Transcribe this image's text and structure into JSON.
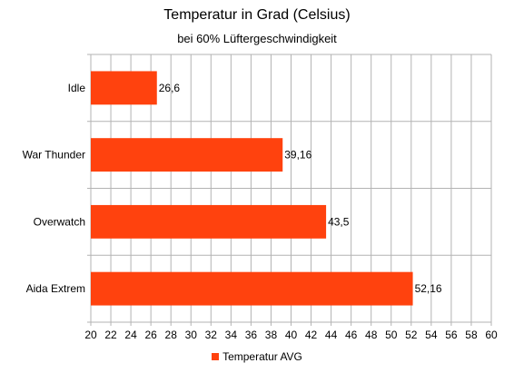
{
  "chart_data": {
    "type": "bar",
    "orientation": "horizontal",
    "title": "Temperatur in Grad (Celsius)",
    "subtitle": "bei 60% Lüftergeschwindigkeit",
    "categories": [
      "Idle",
      "War Thunder",
      "Overwatch",
      "Aida Extrem"
    ],
    "series": [
      {
        "name": "Temperatur AVG",
        "values": [
          26.6,
          39.16,
          43.5,
          52.16
        ],
        "value_labels": [
          "26,6",
          "39,16",
          "43,5",
          "52,16"
        ],
        "color": "#ff420e"
      }
    ],
    "xlim": [
      20,
      60
    ],
    "xticks": [
      20,
      22,
      24,
      26,
      28,
      30,
      32,
      34,
      36,
      38,
      40,
      42,
      44,
      46,
      48,
      50,
      52,
      54,
      56,
      58,
      60
    ],
    "grid": true,
    "legend_position": "bottom"
  }
}
